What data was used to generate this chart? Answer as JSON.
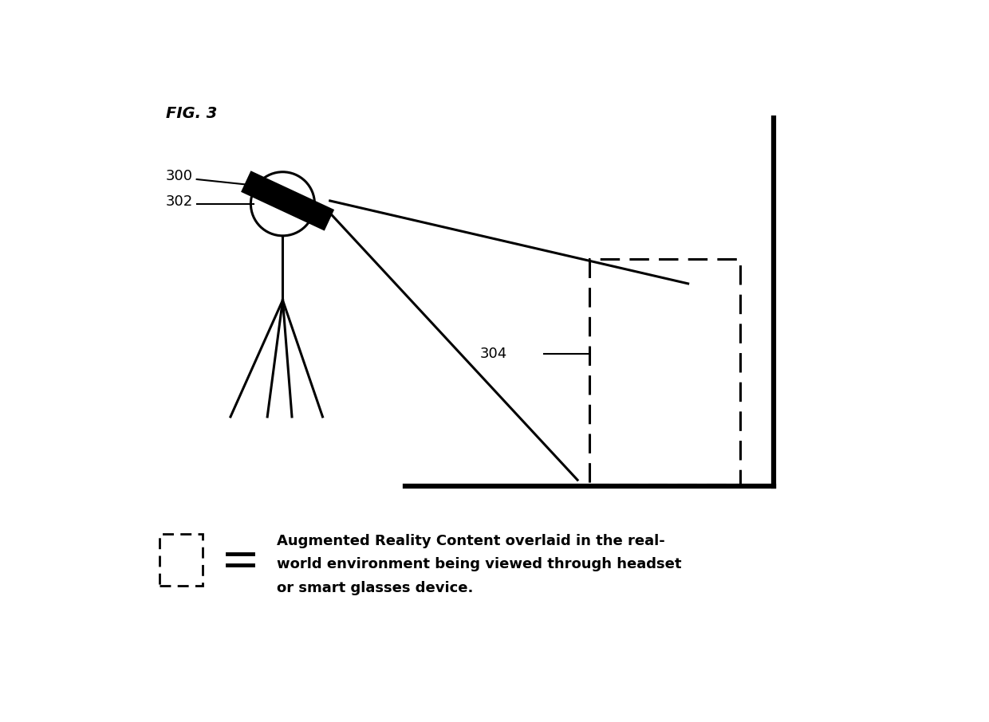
{
  "title": "FIG. 3",
  "bg_color": "#ffffff",
  "label_300": "300",
  "label_302": "302",
  "label_304": "304",
  "legend_text_line1": "Augmented Reality Content overlaid in the real-",
  "legend_text_line2": "world environment being viewed through headset",
  "legend_text_line3": "or smart glasses device.",
  "fig_width": 12.4,
  "fig_height": 9.06
}
